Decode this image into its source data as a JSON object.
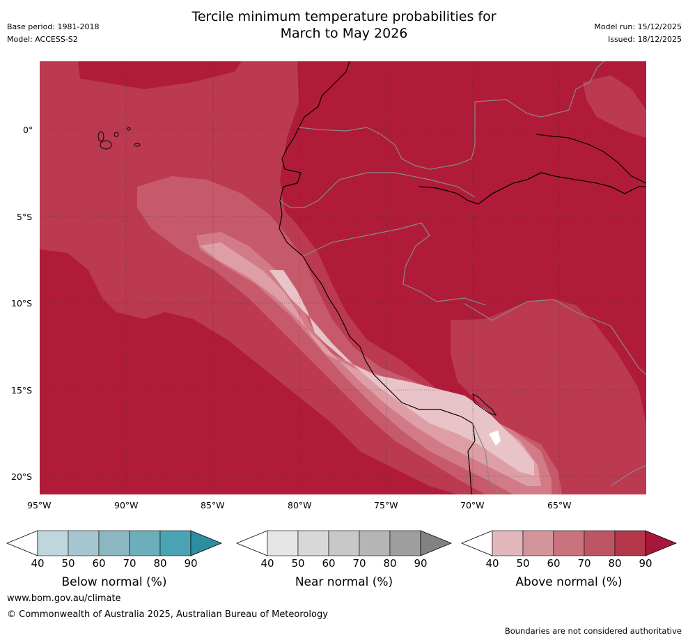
{
  "header": {
    "title_line1": "Tercile minimum temperature probabilities for",
    "title_line2": "March to May 2026",
    "base_period": "Base period: 1981-2018",
    "model": "Model: ACCESS-S2",
    "model_run": "Model run: 15/12/2025",
    "issued": "Issued: 18/12/2025"
  },
  "map": {
    "lat_labels": [
      "0°",
      "5°S",
      "10°S",
      "15°S",
      "20°S"
    ],
    "lon_labels": [
      "95°W",
      "90°W",
      "85°W",
      "80°W",
      "75°W",
      "70°W",
      "65°W"
    ],
    "region": "Western South America and eastern Pacific",
    "colors": {
      "above_90": "#b01c38",
      "above_80": "#bb3a50",
      "above_70": "#c75a6a",
      "above_60": "#d27b86",
      "above_50": "#dd9ea6",
      "above_40": "#e8c3c8"
    }
  },
  "legends": [
    {
      "label": "Below normal (%)",
      "ticks": [
        "40",
        "50",
        "60",
        "70",
        "80",
        "90"
      ],
      "colors": [
        "#bfd6dc",
        "#a5c6ce",
        "#8bb7c1",
        "#6daebb",
        "#49a3b2",
        "#2e8ea0"
      ]
    },
    {
      "label": "Near normal (%)",
      "ticks": [
        "40",
        "50",
        "60",
        "70",
        "80",
        "90"
      ],
      "colors": [
        "#e6e6e6",
        "#d8d8d8",
        "#c8c8c8",
        "#b5b5b5",
        "#9e9e9e",
        "#828282"
      ]
    },
    {
      "label": "Above normal (%)",
      "ticks": [
        "40",
        "50",
        "60",
        "70",
        "80",
        "90"
      ],
      "colors": [
        "#e2b8bd",
        "#d4949b",
        "#c9737e",
        "#be5564",
        "#b33649",
        "#a8173a"
      ]
    }
  ],
  "footer": {
    "website": "www.bom.gov.au/climate",
    "copyright": "© Commonwealth of Australia 2025, Australian Bureau of Meteorology",
    "disclaimer": "Boundaries are not considered authoritative"
  }
}
